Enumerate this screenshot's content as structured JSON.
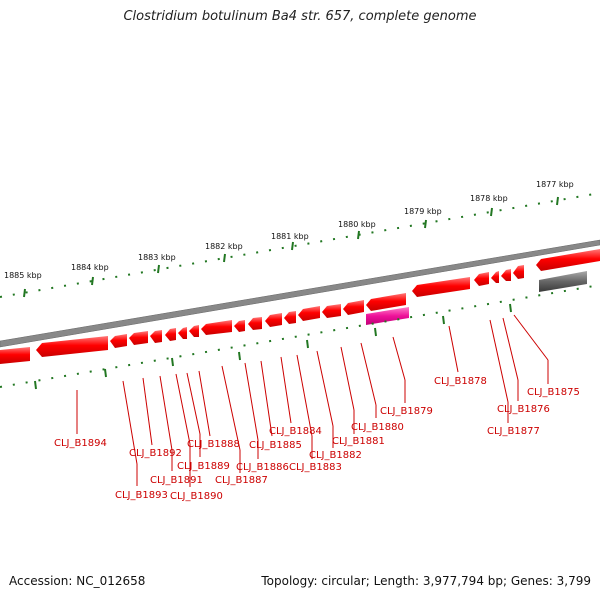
{
  "title": "Clostridium botulinum Ba4 str. 657, complete genome",
  "footer": {
    "accession": "Accession: NC_012658",
    "summary": "Topology: circular; Length: 3,977,794 bp; Genes: 3,799"
  },
  "kbp_labels": [
    "1877 kbp",
    "1878 kbp",
    "1879 kbp",
    "1880 kbp",
    "1881 kbp",
    "1882 kbp",
    "1883 kbp",
    "1884 kbp",
    "1885 kbp"
  ],
  "gene_labels": [
    "CLJ_B1875",
    "CLJ_B1876",
    "CLJ_B1877",
    "CLJ_B1878",
    "CLJ_B1879",
    "CLJ_B1880",
    "CLJ_B1881",
    "CLJ_B1882",
    "CLJ_B1883",
    "CLJ_B1884",
    "CLJ_B1885",
    "CLJ_B1886",
    "CLJ_B1887",
    "CLJ_B1888",
    "CLJ_B1889",
    "CLJ_B1890",
    "CLJ_B1891",
    "CLJ_B1892",
    "CLJ_B1893",
    "CLJ_B1894"
  ],
  "colors": {
    "gene": "#ff0000",
    "rna": "#ee1199",
    "pseudo": "#666666",
    "backbone": "#888888",
    "tick": "#227722",
    "label": "#cc0000"
  }
}
